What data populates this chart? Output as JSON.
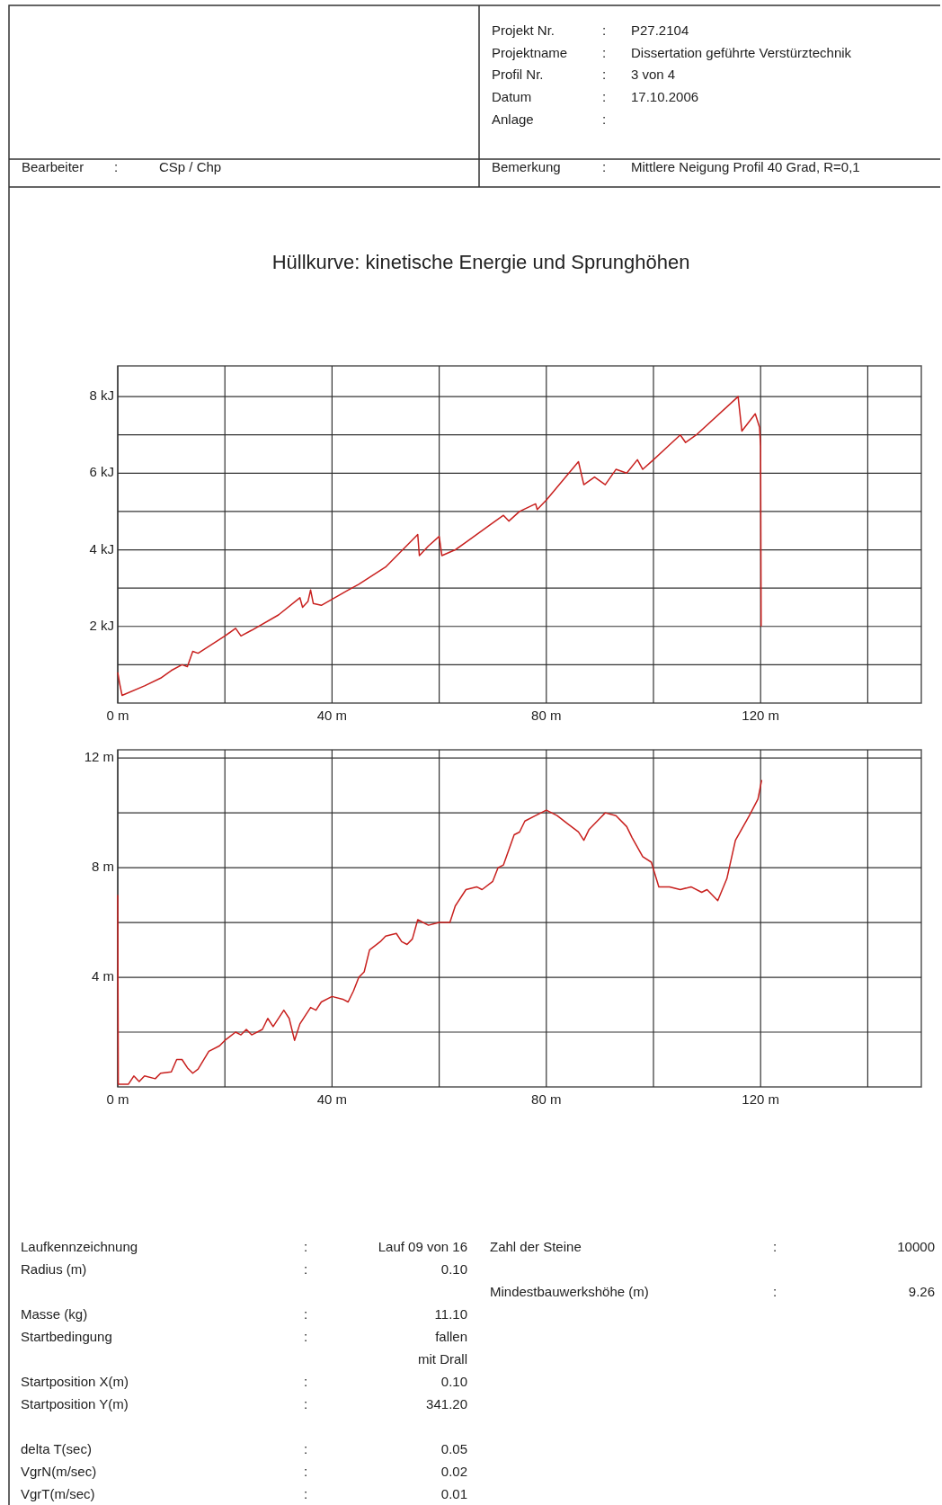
{
  "chart_data": [
    {
      "type": "other",
      "annotations": [
        "Projekt Nr. : P27.2104",
        "Projektname : Dissertation geführte Verstürztechnik",
        "Profil Nr. : 3 von 4",
        "Datum : 17.10.2006",
        "Anlage :",
        "Bearbeiter : CSp / Chp",
        "Bemerkung : Mittlere Neigung Profil 40 Grad, R=0,1"
      ]
    },
    {
      "type": "line",
      "title": "Hüllkurve:  kinetische Energie und  Sprunghöhen",
      "color": "#c8201e",
      "grid": true,
      "x": [
        0,
        0.3,
        0.8,
        5,
        8,
        10,
        12,
        13,
        14,
        15,
        20,
        22,
        23,
        25,
        30,
        34,
        34.5,
        35.5,
        36,
        36.5,
        38,
        43,
        45,
        50,
        56,
        56.3,
        58,
        60,
        60.5,
        63,
        65,
        70,
        72,
        73,
        75,
        78,
        78.3,
        80,
        86,
        87,
        89,
        91,
        93,
        95,
        97,
        98,
        100,
        105,
        106,
        108,
        115.8,
        116.5,
        119,
        119.8,
        120,
        120.1
      ],
      "values": [
        0.8,
        0.55,
        0.2,
        0.45,
        0.65,
        0.85,
        1.0,
        0.95,
        1.35,
        1.3,
        1.75,
        1.95,
        1.75,
        1.9,
        2.3,
        2.75,
        2.5,
        2.65,
        2.95,
        2.6,
        2.55,
        2.95,
        3.1,
        3.55,
        4.4,
        3.85,
        4.1,
        4.35,
        3.85,
        4.0,
        4.2,
        4.7,
        4.9,
        4.75,
        5.0,
        5.2,
        5.05,
        5.3,
        6.3,
        5.7,
        5.9,
        5.7,
        6.1,
        6.0,
        6.35,
        6.1,
        6.35,
        7.0,
        6.8,
        7.0,
        8.0,
        7.1,
        7.55,
        7.2,
        6.7,
        2.0
      ],
      "xlim": [
        0,
        150
      ],
      "xticks": [
        {
          "value": 0,
          "label": "0 m"
        },
        {
          "value": 20,
          "label": null
        },
        {
          "value": 40,
          "label": "40 m"
        },
        {
          "value": 60,
          "label": null
        },
        {
          "value": 80,
          "label": "80 m"
        },
        {
          "value": 100,
          "label": null
        },
        {
          "value": 120,
          "label": "120 m"
        },
        {
          "value": 140,
          "label": null
        }
      ],
      "ylim": [
        0,
        8.8
      ],
      "yticks": [
        {
          "value": 1,
          "label": null
        },
        {
          "value": 2,
          "label": "2 kJ"
        },
        {
          "value": 3,
          "label": null
        },
        {
          "value": 4,
          "label": "4 kJ"
        },
        {
          "value": 5,
          "label": null
        },
        {
          "value": 6,
          "label": "6 kJ"
        },
        {
          "value": 7,
          "label": null
        },
        {
          "value": 8,
          "label": "8 kJ"
        }
      ]
    },
    {
      "type": "line",
      "color": "#c8201e",
      "grid": true,
      "x": [
        0,
        0.1,
        2,
        3,
        4,
        5,
        7,
        8,
        10,
        11,
        12,
        13,
        14,
        15,
        17,
        19,
        20,
        22,
        23,
        24,
        25,
        27,
        28,
        29,
        31,
        32,
        33,
        34,
        36,
        37,
        38,
        40,
        42,
        43,
        44,
        45,
        46,
        47,
        49,
        50,
        52,
        53,
        54,
        55,
        56,
        58,
        60,
        62,
        63,
        65,
        67,
        68,
        70,
        71,
        72,
        74,
        75,
        76,
        78,
        80,
        82,
        84,
        86,
        87,
        88,
        90,
        91,
        93,
        95,
        96,
        98,
        99.6,
        101,
        103,
        105,
        107,
        109,
        110,
        112,
        113.7,
        115.3,
        117.9,
        119.5,
        120.2
      ],
      "values": [
        7.0,
        0.1,
        0.1,
        0.4,
        0.2,
        0.4,
        0.3,
        0.5,
        0.55,
        1.0,
        1.0,
        0.7,
        0.5,
        0.65,
        1.3,
        1.5,
        1.7,
        2.0,
        1.9,
        2.1,
        1.9,
        2.1,
        2.5,
        2.2,
        2.8,
        2.5,
        1.7,
        2.3,
        2.9,
        2.8,
        3.1,
        3.3,
        3.2,
        3.1,
        3.5,
        4.0,
        4.2,
        5.0,
        5.3,
        5.5,
        5.6,
        5.3,
        5.2,
        5.4,
        6.1,
        5.9,
        6.0,
        6.0,
        6.6,
        7.2,
        7.3,
        7.2,
        7.5,
        8.0,
        8.1,
        9.2,
        9.3,
        9.7,
        9.9,
        10.1,
        9.9,
        9.6,
        9.3,
        9.0,
        9.4,
        9.8,
        10.0,
        9.9,
        9.5,
        9.1,
        8.4,
        8.2,
        7.3,
        7.3,
        7.2,
        7.3,
        7.1,
        7.2,
        6.8,
        7.6,
        9.0,
        9.9,
        10.5,
        11.2
      ],
      "xlim": [
        0,
        150
      ],
      "xticks": [
        {
          "value": 0,
          "label": "0 m"
        },
        {
          "value": 20,
          "label": null
        },
        {
          "value": 40,
          "label": "40 m"
        },
        {
          "value": 60,
          "label": null
        },
        {
          "value": 80,
          "label": "80 m"
        },
        {
          "value": 100,
          "label": null
        },
        {
          "value": 120,
          "label": "120 m"
        },
        {
          "value": 140,
          "label": null
        }
      ],
      "ylim": [
        0,
        12.3
      ],
      "yticks": [
        {
          "value": 2,
          "label": null
        },
        {
          "value": 4,
          "label": "4 m"
        },
        {
          "value": 6,
          "label": null
        },
        {
          "value": 8,
          "label": "8 m"
        },
        {
          "value": 10,
          "label": null
        },
        {
          "value": 12,
          "label": "12 m"
        }
      ]
    },
    {
      "type": "other",
      "annotations": [
        "Laufkennzeichnung : Lauf 09 von 16",
        "Radius (m) : 0.10",
        "Masse (kg) : 11.10",
        "Startbedingung : fallen",
        "mit Drall",
        "Startposition X(m) : 0.10",
        "Startposition Y(m) : 341.20",
        "delta T(sec) : 0.05",
        "VgrN(m/sec) : 0.02",
        "VgrT(m/sec) : 0.01"
      ]
    },
    {
      "type": "other",
      "annotations": [
        "Zahl der Steine : 10000",
        "Mindestbauwerkshöhe (m) : 9.26"
      ]
    }
  ]
}
